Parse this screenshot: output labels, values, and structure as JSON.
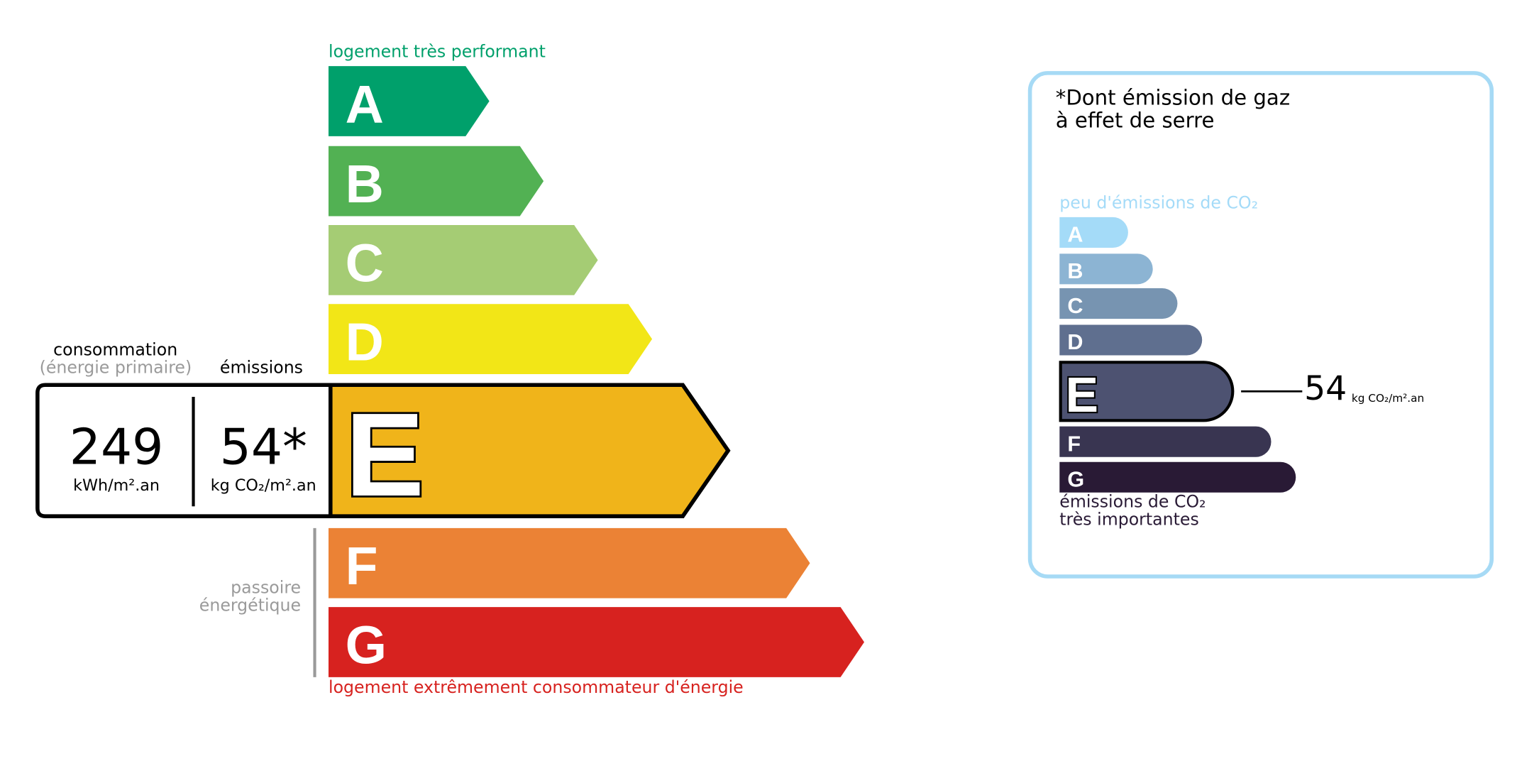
{
  "energy": {
    "top_label": "logement très performant",
    "bottom_label": "logement extrêmement consommateur d'énergie",
    "consumption_label": "consommation",
    "consumption_sub": "(énergie primaire)",
    "emissions_label": "émissions",
    "consumption_value": "249",
    "consumption_unit": "kWh/m².an",
    "emissions_value": "54*",
    "emissions_unit": "kg CO₂/m².an",
    "passoire_line1": "passoire",
    "passoire_line2": "énergétique",
    "current_class": "E",
    "classes": [
      {
        "letter": "A",
        "color": "#00a06b"
      },
      {
        "letter": "B",
        "color": "#52b153"
      },
      {
        "letter": "C",
        "color": "#a5cc74"
      },
      {
        "letter": "D",
        "color": "#f2e617"
      },
      {
        "letter": "E",
        "color": "#f0b41a"
      },
      {
        "letter": "F",
        "color": "#eb8235"
      },
      {
        "letter": "G",
        "color": "#d7221f"
      }
    ]
  },
  "ghg": {
    "title_line1": "*Dont émission de gaz",
    "title_line2": "à effet de serre",
    "top_label": "peu d'émissions de CO₂",
    "bottom_line1": "émissions de CO₂",
    "bottom_line2": "très importantes",
    "value": "54",
    "unit": "kg CO₂/m².an",
    "current_class": "E",
    "classes": [
      {
        "letter": "A",
        "color": "#a4dbf8"
      },
      {
        "letter": "B",
        "color": "#8cb4d3"
      },
      {
        "letter": "C",
        "color": "#7794b1"
      },
      {
        "letter": "D",
        "color": "#5f6f8f"
      },
      {
        "letter": "E",
        "color": "#4d5271"
      },
      {
        "letter": "F",
        "color": "#393551"
      },
      {
        "letter": "G",
        "color": "#291a35"
      }
    ]
  }
}
